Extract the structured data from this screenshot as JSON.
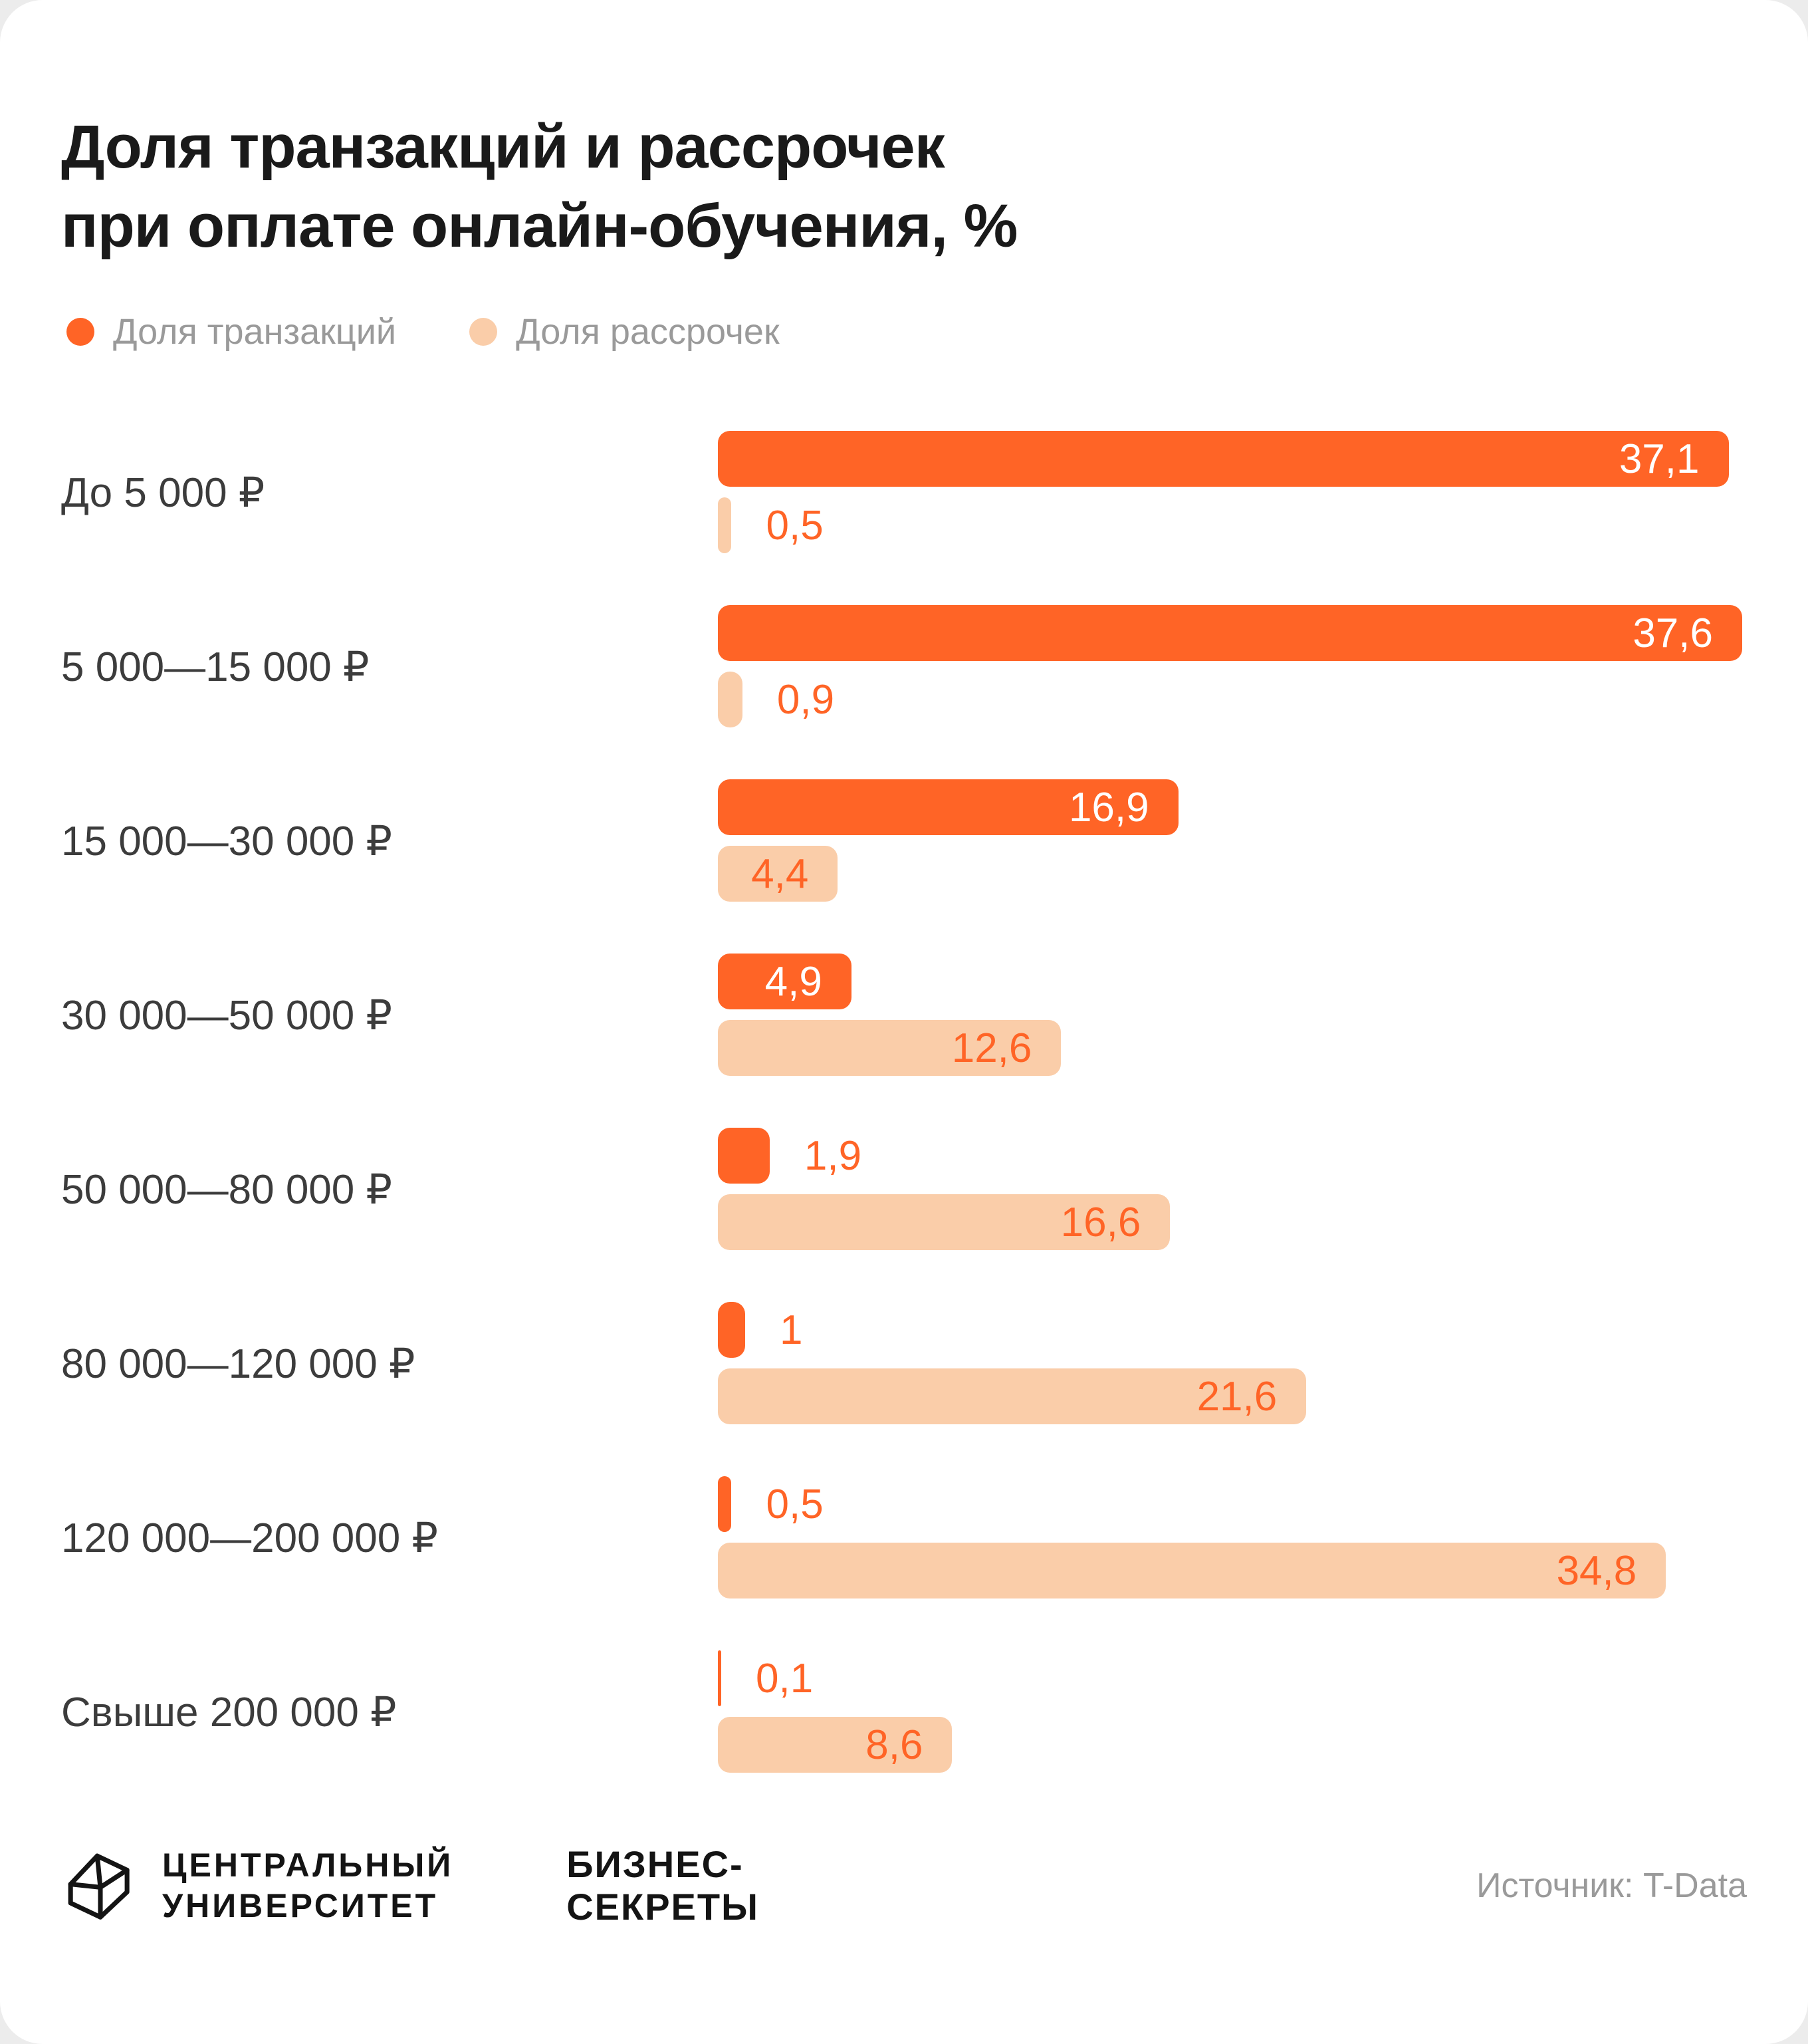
{
  "title": {
    "line1": "Доля транзакций и рассрочек",
    "line2": "при оплате онлайн-обучения, %"
  },
  "legend": [
    {
      "label": "Доля транзакций",
      "color": "#FF6426"
    },
    {
      "label": "Доля рассрочек",
      "color": "#FACDA9"
    }
  ],
  "colors": {
    "primary": "#FF6426",
    "light": "#FACDA9",
    "title_text": "#1A1A1A",
    "category_text": "#3C3C3C",
    "muted_text": "#9A9A9A"
  },
  "chart_data": {
    "type": "bar",
    "orientation": "horizontal",
    "title": "Доля транзакций и рассрочек при оплате онлайн-обучения, %",
    "unit": "%",
    "categories": [
      "До 5 000 ₽",
      "5 000—15 000 ₽",
      "15 000—30 000 ₽",
      "30 000—50 000 ₽",
      "50 000—80 000 ₽",
      "80 000—120 000 ₽",
      "120 000—200 000 ₽",
      "Свыше 200 000 ₽"
    ],
    "series": [
      {
        "name": "Доля транзакций",
        "color": "#FF6426",
        "values": [
          37.1,
          37.6,
          16.9,
          4.9,
          1.9,
          1,
          0.5,
          0.1
        ],
        "labels": [
          "37,1",
          "37,6",
          "16,9",
          "4,9",
          "1,9",
          "1",
          "0,5",
          "0,1"
        ]
      },
      {
        "name": "Доля рассрочек",
        "color": "#FACDA9",
        "values": [
          0.5,
          0.9,
          4.4,
          12.6,
          16.6,
          21.6,
          34.8,
          8.6
        ],
        "labels": [
          "0,5",
          "0,9",
          "4,4",
          "12,6",
          "16,6",
          "21,6",
          "34,8",
          "8,6"
        ]
      }
    ],
    "xlim": [
      0,
      37.6
    ],
    "grid": false,
    "legend_position": "top-left",
    "value_labels": true
  },
  "footer": {
    "logo1_line1": "Центральный",
    "logo1_line2": "Университет",
    "logo2_line1": "Бизнес-",
    "logo2_line2": "Секреты",
    "source": "Источник: T-Data"
  }
}
